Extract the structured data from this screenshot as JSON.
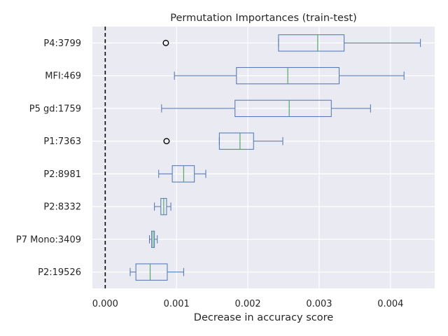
{
  "chart_data": {
    "type": "boxplot",
    "orientation": "horizontal",
    "title": "Permutation Importances (train-test)",
    "xlabel": "Decrease in accuracy score",
    "ylabel": "",
    "xlim": [
      -0.00018,
      0.00462
    ],
    "x_ticks": [
      0.0,
      0.001,
      0.002,
      0.003,
      0.004
    ],
    "x_tick_labels": [
      "0.000",
      "0.001",
      "0.002",
      "0.003",
      "0.004"
    ],
    "grid": true,
    "reference_line": {
      "x": 0.0,
      "style": "dashed",
      "color": "#000000"
    },
    "box_color": "#4c72b0",
    "median_color": "#55a868",
    "background_color": "#eaeaf2",
    "series": [
      {
        "label": "P4:3799",
        "whisker_low": 0.00243,
        "q1": 0.00243,
        "median": 0.00298,
        "q3": 0.00335,
        "whisker_high": 0.00442,
        "outliers": [
          0.00085
        ]
      },
      {
        "label": "MFI:469",
        "whisker_low": 0.00097,
        "q1": 0.00184,
        "median": 0.00256,
        "q3": 0.00328,
        "whisker_high": 0.00419,
        "outliers": []
      },
      {
        "label": "P5 gd:1759",
        "whisker_low": 0.00079,
        "q1": 0.00182,
        "median": 0.00258,
        "q3": 0.00317,
        "whisker_high": 0.00372,
        "outliers": []
      },
      {
        "label": "P1:7363",
        "whisker_low": 0.0016,
        "q1": 0.0016,
        "median": 0.00189,
        "q3": 0.00208,
        "whisker_high": 0.00249,
        "outliers": [
          0.00086
        ]
      },
      {
        "label": "P2:8981",
        "whisker_low": 0.00075,
        "q1": 0.00094,
        "median": 0.0011,
        "q3": 0.00125,
        "whisker_high": 0.00141,
        "outliers": []
      },
      {
        "label": "P2:8332",
        "whisker_low": 0.00069,
        "q1": 0.00078,
        "median": 0.00082,
        "q3": 0.00086,
        "whisker_high": 0.00092,
        "outliers": []
      },
      {
        "label": "P7 Mono:3409",
        "whisker_low": 0.00062,
        "q1": 0.00065,
        "median": 0.00067,
        "q3": 0.00069,
        "whisker_high": 0.00073,
        "outliers": []
      },
      {
        "label": "P2:19526",
        "whisker_low": 0.00035,
        "q1": 0.00043,
        "median": 0.00063,
        "q3": 0.00087,
        "whisker_high": 0.0011,
        "outliers": []
      }
    ]
  }
}
